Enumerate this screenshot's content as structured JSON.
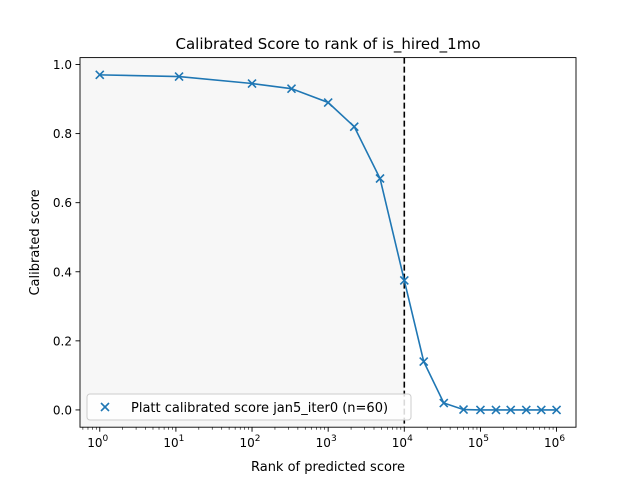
{
  "chart_data": {
    "type": "line",
    "title": "Calibrated Score to rank of is_hired_1mo",
    "xlabel": "Rank of predicted score",
    "ylabel": "Calibrated score",
    "xscale": "log",
    "xlim": [
      0.55,
      1800000
    ],
    "ylim": [
      -0.05,
      1.02
    ],
    "x_ticks": [
      {
        "value": 1,
        "base": "10",
        "exp": "0"
      },
      {
        "value": 10,
        "base": "10",
        "exp": "1"
      },
      {
        "value": 100,
        "base": "10",
        "exp": "2"
      },
      {
        "value": 1000,
        "base": "10",
        "exp": "3"
      },
      {
        "value": 10000,
        "base": "10",
        "exp": "4"
      },
      {
        "value": 100000,
        "base": "10",
        "exp": "5"
      },
      {
        "value": 1000000,
        "base": "10",
        "exp": "6"
      }
    ],
    "y_ticks": [
      {
        "value": 0.0,
        "label": "0.0"
      },
      {
        "value": 0.2,
        "label": "0.2"
      },
      {
        "value": 0.4,
        "label": "0.4"
      },
      {
        "value": 0.6,
        "label": "0.6"
      },
      {
        "value": 0.8,
        "label": "0.8"
      },
      {
        "value": 1.0,
        "label": "1.0"
      }
    ],
    "shaded_region": {
      "x_from": 0.55,
      "x_to": 10000,
      "color": "#f7f7f7"
    },
    "vline": {
      "x": 10000,
      "color": "#000000",
      "style": "dashed"
    },
    "series": [
      {
        "name": "Platt calibrated score jan5_iter0 (n=60)",
        "color": "#1f77b4",
        "marker": "x",
        "x": [
          1,
          11,
          100,
          330,
          1000,
          2200,
          4800,
          10000,
          18000,
          33000,
          60000,
          100000,
          160000,
          250000,
          400000,
          630000,
          1000000
        ],
        "y": [
          0.97,
          0.965,
          0.945,
          0.93,
          0.89,
          0.82,
          0.67,
          0.375,
          0.14,
          0.02,
          0.001,
          0.0,
          0.0,
          0.0,
          0.0,
          0.0,
          0.0
        ]
      }
    ],
    "legend_position": "lower-left",
    "grid": false
  }
}
